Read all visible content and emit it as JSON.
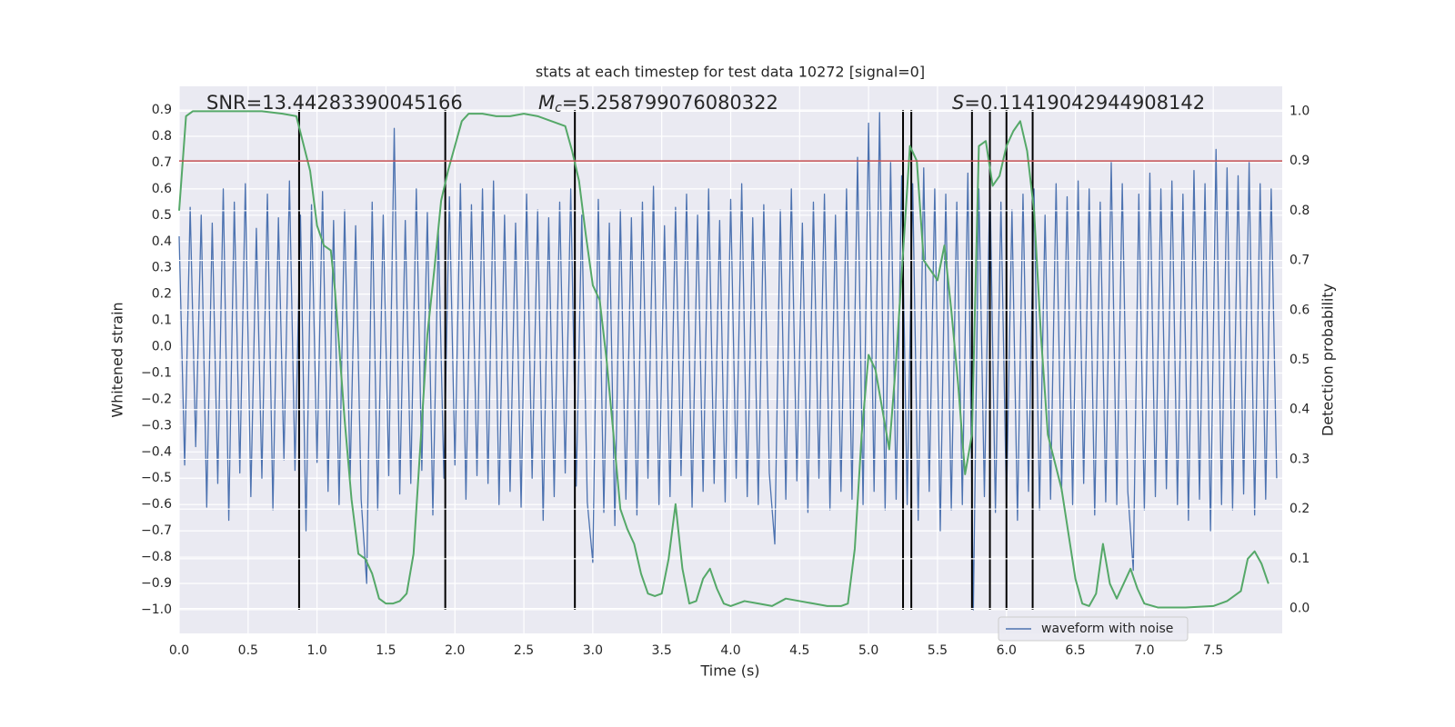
{
  "chart_data": {
    "type": "line",
    "title": "stats at each timestep for test data 10272 [signal=0]",
    "x_label": "Time (s)",
    "y_label": "Whitened strain",
    "y2_label": "Detection probability",
    "xlim": [
      0,
      8
    ],
    "ylim": [
      -1.09,
      0.99
    ],
    "y2lim": [
      -0.05,
      1.05
    ],
    "xticks": [
      {
        "value": 0,
        "label": "0.0"
      },
      0.5,
      {
        "value": 1,
        "label": "1.0"
      },
      1.5,
      {
        "value": 2,
        "label": "2.0"
      },
      2.5,
      {
        "value": 3,
        "label": "3.0"
      },
      3.5,
      {
        "value": 4,
        "label": "4.0"
      },
      4.5,
      {
        "value": 5,
        "label": "5.0"
      },
      5.5,
      {
        "value": 6,
        "label": "6.0"
      },
      6.5,
      {
        "value": 7,
        "label": "7.0"
      },
      7.5
    ],
    "yticks": [
      0.9,
      0.8,
      0.7,
      0.6,
      0.5,
      0.4,
      0.3,
      0.2,
      0.1,
      {
        "value": 0,
        "label": "0.0"
      },
      {
        "value": -0.1,
        "label": "−0.1"
      },
      {
        "value": -0.2,
        "label": "−0.2"
      },
      {
        "value": -0.3,
        "label": "−0.3"
      },
      {
        "value": -0.4,
        "label": "−0.4"
      },
      {
        "value": -0.5,
        "label": "−0.5"
      },
      {
        "value": -0.6,
        "label": "−0.6"
      },
      {
        "value": -0.7,
        "label": "−0.7"
      },
      {
        "value": -0.8,
        "label": "−0.8"
      },
      {
        "value": -0.9,
        "label": "−0.9"
      },
      {
        "value": -1,
        "label": "−1.0"
      }
    ],
    "y2ticks": [
      {
        "value": 0,
        "label": "0.0"
      },
      0.1,
      0.2,
      0.3,
      0.4,
      0.5,
      0.6,
      0.7,
      0.8,
      0.9,
      {
        "value": 1,
        "label": "1.0"
      }
    ],
    "grid": true,
    "legend": "best",
    "series": [
      {
        "name": "waveform with noise",
        "color": "#4c72b0",
        "x": [
          0,
          0.04,
          0.08,
          0.12,
          0.16,
          0.2,
          0.24,
          0.28,
          0.32,
          0.36,
          0.4,
          0.44,
          0.48,
          0.52,
          0.56,
          0.6,
          0.64,
          0.68,
          0.72,
          0.76,
          0.8,
          0.84,
          0.88,
          0.92,
          0.96,
          1,
          1.04,
          1.08,
          1.12,
          1.16,
          1.2,
          1.24,
          1.28,
          1.32,
          1.36,
          1.4,
          1.44,
          1.48,
          1.52,
          1.56,
          1.6,
          1.64,
          1.68,
          1.72,
          1.76,
          1.8,
          1.84,
          1.88,
          1.92,
          1.96,
          2,
          2.04,
          2.08,
          2.12,
          2.16,
          2.2,
          2.24,
          2.28,
          2.32,
          2.36,
          2.4,
          2.44,
          2.48,
          2.52,
          2.56,
          2.6,
          2.64,
          2.68,
          2.72,
          2.76,
          2.8,
          2.84,
          2.88,
          2.92,
          2.96,
          3,
          3.04,
          3.08,
          3.12,
          3.16,
          3.2,
          3.24,
          3.28,
          3.32,
          3.36,
          3.4,
          3.44,
          3.48,
          3.52,
          3.56,
          3.6,
          3.64,
          3.68,
          3.72,
          3.76,
          3.8,
          3.84,
          3.88,
          3.92,
          3.96,
          4,
          4.04,
          4.08,
          4.12,
          4.16,
          4.2,
          4.24,
          4.28,
          4.32,
          4.36,
          4.4,
          4.44,
          4.48,
          4.52,
          4.56,
          4.6,
          4.64,
          4.68,
          4.72,
          4.76,
          4.8,
          4.84,
          4.88,
          4.92,
          4.96,
          5,
          5.04,
          5.08,
          5.12,
          5.16,
          5.2,
          5.24,
          5.28,
          5.32,
          5.36,
          5.4,
          5.44,
          5.48,
          5.52,
          5.56,
          5.6,
          5.64,
          5.68,
          5.72,
          5.76,
          5.8,
          5.84,
          5.88,
          5.92,
          5.96,
          6,
          6.04,
          6.08,
          6.12,
          6.16,
          6.2,
          6.24,
          6.28,
          6.32,
          6.36,
          6.4,
          6.44,
          6.48,
          6.52,
          6.56,
          6.6,
          6.64,
          6.68,
          6.72,
          6.76,
          6.8,
          6.84,
          6.88,
          6.92,
          6.96,
          7,
          7.04,
          7.08,
          7.12,
          7.16,
          7.2,
          7.24,
          7.28,
          7.32,
          7.36,
          7.4,
          7.44,
          7.48,
          7.52,
          7.56,
          7.6,
          7.64,
          7.68,
          7.72,
          7.76,
          7.8,
          7.84,
          7.88,
          7.92,
          7.96
        ],
        "values": [
          0.42,
          -0.45,
          0.53,
          -0.38,
          0.5,
          -0.61,
          0.47,
          -0.52,
          0.6,
          -0.66,
          0.55,
          -0.48,
          0.62,
          -0.57,
          0.45,
          -0.5,
          0.58,
          -0.62,
          0.49,
          -0.43,
          0.63,
          -0.47,
          0.5,
          -0.7,
          0.54,
          -0.44,
          0.59,
          -0.55,
          0.48,
          -0.6,
          0.52,
          -0.5,
          0.46,
          -0.58,
          -0.9,
          0.55,
          -0.62,
          0.5,
          -0.49,
          0.83,
          -0.56,
          0.48,
          -0.52,
          0.6,
          -0.47,
          0.51,
          -0.64,
          0.44,
          -0.5,
          0.57,
          -0.45,
          0.62,
          -0.58,
          0.54,
          -0.49,
          0.6,
          -0.52,
          0.63,
          -0.6,
          0.5,
          -0.55,
          0.47,
          -0.61,
          0.58,
          -0.5,
          0.52,
          -0.66,
          0.49,
          -0.57,
          0.55,
          -0.48,
          0.6,
          -0.53,
          0.5,
          -0.59,
          -0.82,
          0.56,
          -0.63,
          0.47,
          -0.68,
          0.52,
          -0.58,
          0.49,
          -0.64,
          0.55,
          -0.5,
          0.61,
          -0.6,
          0.46,
          -0.57,
          0.53,
          -0.49,
          0.58,
          -0.61,
          0.5,
          -0.55,
          0.6,
          -0.52,
          0.48,
          -0.59,
          0.56,
          -0.5,
          0.62,
          -0.57,
          0.49,
          -0.6,
          0.54,
          -0.48,
          -0.75,
          0.52,
          -0.58,
          0.6,
          -0.51,
          0.47,
          -0.63,
          0.55,
          -0.5,
          0.58,
          -0.62,
          0.5,
          -0.55,
          0.6,
          -0.58,
          0.72,
          -0.6,
          0.85,
          -0.55,
          0.89,
          -0.62,
          0.7,
          -0.58,
          0.65,
          -0.6,
          0.62,
          -0.66,
          0.68,
          -0.55,
          0.6,
          -0.7,
          0.58,
          -0.62,
          0.55,
          -0.6,
          0.66,
          -1.0,
          0.6,
          -0.57,
          0.64,
          -0.63,
          0.55,
          -0.6,
          0.52,
          -0.66,
          0.58,
          -0.55,
          0.6,
          -0.62,
          0.5,
          -0.58,
          0.62,
          -0.55,
          0.57,
          -0.6,
          0.63,
          -0.52,
          0.6,
          -0.64,
          0.55,
          -0.59,
          0.7,
          -0.6,
          0.62,
          -0.55,
          -0.85,
          0.58,
          -0.62,
          0.66,
          -0.57,
          0.6,
          -0.54,
          0.63,
          -0.6,
          0.58,
          -0.66,
          0.67,
          -0.58,
          0.62,
          -0.7,
          0.75,
          -0.6,
          0.68,
          -0.62,
          0.65,
          -0.56,
          0.7,
          -0.64,
          0.62,
          -0.58,
          0.6,
          -0.5
        ]
      },
      {
        "color": "#55a868",
        "axis": "y2",
        "x": [
          0,
          0.05,
          0.1,
          0.3,
          0.6,
          0.75,
          0.85,
          0.95,
          1,
          1.05,
          1.1,
          1.13,
          1.2,
          1.25,
          1.3,
          1.35,
          1.4,
          1.45,
          1.5,
          1.55,
          1.6,
          1.65,
          1.7,
          1.75,
          1.8,
          1.85,
          1.9,
          1.95,
          2,
          2.05,
          2.1,
          2.2,
          2.3,
          2.4,
          2.5,
          2.6,
          2.7,
          2.8,
          2.85,
          2.9,
          2.95,
          3,
          3.05,
          3.1,
          3.15,
          3.2,
          3.25,
          3.3,
          3.35,
          3.4,
          3.45,
          3.5,
          3.55,
          3.6,
          3.65,
          3.7,
          3.75,
          3.8,
          3.85,
          3.9,
          3.95,
          4,
          4.1,
          4.2,
          4.3,
          4.4,
          4.5,
          4.6,
          4.7,
          4.8,
          4.85,
          4.9,
          4.95,
          5,
          5.05,
          5.1,
          5.15,
          5.2,
          5.3,
          5.35,
          5.4,
          5.45,
          5.5,
          5.55,
          5.6,
          5.65,
          5.7,
          5.75,
          5.8,
          5.85,
          5.9,
          5.95,
          6,
          6.05,
          6.1,
          6.15,
          6.2,
          6.25,
          6.3,
          6.4,
          6.5,
          6.55,
          6.6,
          6.65,
          6.7,
          6.75,
          6.8,
          6.9,
          6.95,
          7,
          7.1,
          7.3,
          7.5,
          7.6,
          7.7,
          7.75,
          7.8,
          7.85,
          7.9
        ],
        "values": [
          0.8,
          0.99,
          1.0,
          1.0,
          1.0,
          0.995,
          0.99,
          0.88,
          0.77,
          0.73,
          0.72,
          0.64,
          0.38,
          0.22,
          0.11,
          0.1,
          0.07,
          0.02,
          0.01,
          0.01,
          0.015,
          0.03,
          0.11,
          0.33,
          0.55,
          0.68,
          0.82,
          0.88,
          0.93,
          0.98,
          0.995,
          0.995,
          0.99,
          0.99,
          0.995,
          0.99,
          0.98,
          0.97,
          0.92,
          0.86,
          0.75,
          0.65,
          0.62,
          0.5,
          0.35,
          0.2,
          0.16,
          0.13,
          0.07,
          0.03,
          0.025,
          0.03,
          0.1,
          0.21,
          0.08,
          0.01,
          0.015,
          0.06,
          0.08,
          0.04,
          0.01,
          0.005,
          0.015,
          0.01,
          0.005,
          0.02,
          0.015,
          0.01,
          0.005,
          0.005,
          0.01,
          0.12,
          0.35,
          0.51,
          0.48,
          0.4,
          0.32,
          0.5,
          0.93,
          0.9,
          0.7,
          0.68,
          0.66,
          0.73,
          0.6,
          0.45,
          0.27,
          0.35,
          0.93,
          0.94,
          0.85,
          0.87,
          0.93,
          0.96,
          0.98,
          0.92,
          0.8,
          0.55,
          0.35,
          0.24,
          0.06,
          0.01,
          0.005,
          0.03,
          0.13,
          0.05,
          0.02,
          0.08,
          0.04,
          0.01,
          0.002,
          0.002,
          0.005,
          0.015,
          0.035,
          0.1,
          0.115,
          0.09,
          0.05
        ]
      }
    ],
    "threshold": {
      "value": 0.9,
      "axis": "y2",
      "color": "#c44e52"
    },
    "vlines": {
      "x": [
        0.87,
        1.93,
        2.87,
        5.25,
        5.31,
        5.75,
        5.88,
        6.0,
        6.19
      ],
      "ymin": -1.0,
      "ymax": 0.9,
      "color": "#000000"
    },
    "annotations": [
      {
        "text": "SNR=13.44283390045166"
      },
      {
        "symbol": "M",
        "sub": "c",
        "text": "=5.258799076080322"
      },
      {
        "symbol": "S",
        "text": "=0.11419042944908142"
      }
    ]
  }
}
